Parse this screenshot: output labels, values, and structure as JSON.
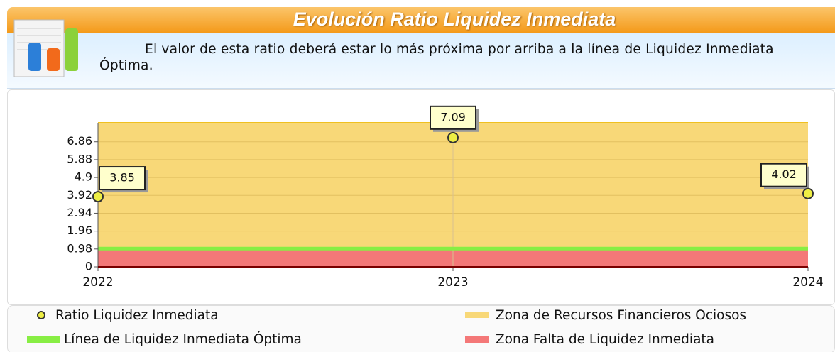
{
  "header": {
    "title": "Evolución Ratio Liquidez Inmediata",
    "description": "El valor de esta ratio deberá estar lo más próxima por arriba a la línea de Liquidez Inmediata Óptima."
  },
  "chart_data": {
    "type": "scatter",
    "categories": [
      "2022",
      "2023",
      "2024"
    ],
    "series": [
      {
        "name": "Ratio Liquidez Inmediata",
        "color": "#eeee44",
        "values": [
          3.85,
          7.09,
          4.02
        ]
      }
    ],
    "optimal_line": {
      "name": "Línea de Liquidez Inmediata Óptima",
      "color": "#88ee44",
      "value": 1
    },
    "zones": [
      {
        "name": "Zona de Recursos Financieros Ociosos",
        "color": "#f8d878",
        "from": 1,
        "to": 7.9
      },
      {
        "name": "Zona Falta de Liquidez Inmediata",
        "color": "#f47878",
        "from": 0,
        "to": 1
      }
    ],
    "ylim": [
      0,
      7.9
    ],
    "yticks": [
      0,
      0.98,
      1.96,
      2.94,
      3.92,
      4.9,
      5.88,
      6.86
    ],
    "grid": true
  }
}
